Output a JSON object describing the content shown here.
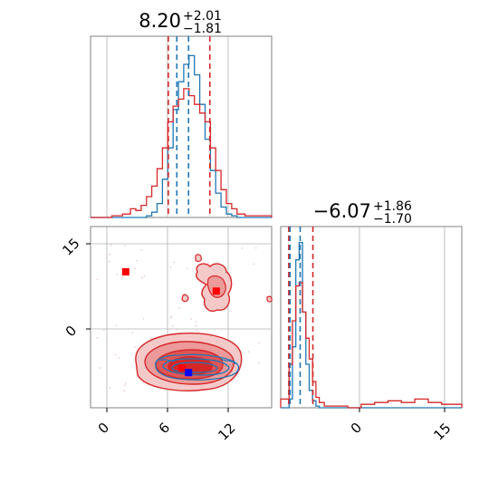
{
  "chart_data": {
    "type": "corner",
    "colors": {
      "blue": "#1f77b4",
      "red": "#d62728",
      "grid": "#b0b0b0",
      "frame": "#808080"
    },
    "param1": {
      "median": "8.20",
      "plus": "+2.01",
      "minus": "−1.81",
      "xlim": [
        -1,
        16
      ],
      "quantile_lines_blue": [
        7.1,
        8.2
      ],
      "quantile_lines_red": [
        6.3,
        10.2
      ],
      "hist_x": [
        0.5,
        1.5,
        2.5,
        3.0,
        3.5,
        4.0,
        4.5,
        5.0,
        5.5,
        6.0,
        6.5,
        7.0,
        7.5,
        8.0,
        8.5,
        9.0,
        9.5,
        10.0,
        10.5,
        11.0,
        11.5,
        12.0,
        12.5,
        13.0,
        14.0,
        15.0
      ],
      "hist_blue": [
        0,
        0,
        0,
        0,
        0,
        0,
        0.01,
        0.03,
        0.08,
        0.22,
        0.4,
        0.62,
        0.78,
        0.88,
        0.93,
        0.82,
        0.65,
        0.45,
        0.27,
        0.14,
        0.06,
        0.02,
        0.01,
        0,
        0,
        0
      ],
      "hist_red": [
        0,
        0.01,
        0.02,
        0.05,
        0.04,
        0.07,
        0.12,
        0.18,
        0.28,
        0.4,
        0.55,
        0.64,
        0.68,
        0.74,
        0.7,
        0.65,
        0.6,
        0.55,
        0.4,
        0.27,
        0.16,
        0.08,
        0.05,
        0.02,
        0.01,
        0.01
      ]
    },
    "param2": {
      "median": "−6.07",
      "plus": "+1.86",
      "minus": "−1.70",
      "xlim": [
        -9,
        18
      ],
      "quantile_lines_blue": [
        -7.6,
        -6.1
      ],
      "quantile_lines_red": [
        -7.8,
        -4.2
      ],
      "hist_x": [
        -8.0,
        -7.5,
        -7.0,
        -6.5,
        -6.0,
        -5.5,
        -5.0,
        -4.5,
        -4.0,
        -3.5,
        -3.0,
        -2.0,
        0.0,
        2.0,
        4.0,
        6.0,
        8.0,
        10.0,
        12.0,
        14.0,
        16.0
      ],
      "hist_blue": [
        0,
        0.05,
        0.35,
        0.85,
        0.95,
        0.55,
        0.25,
        0.1,
        0.04,
        0.01,
        0,
        0,
        0,
        0,
        0,
        0,
        0,
        0,
        0,
        0,
        0
      ],
      "hist_red": [
        0.05,
        0.25,
        0.5,
        0.7,
        0.72,
        0.55,
        0.4,
        0.28,
        0.15,
        0.06,
        0.03,
        0.01,
        0.01,
        0,
        0.02,
        0.03,
        0.04,
        0.03,
        0.05,
        0.03,
        0.02
      ]
    },
    "joint": {
      "xlim": [
        -1,
        16
      ],
      "ylim": [
        -13,
        19
      ],
      "markers_red": [
        [
          2.3,
          11
        ],
        [
          10.8,
          7.6
        ],
        [
          7.6,
          -6.0
        ]
      ],
      "markers_blue": [
        [
          8.2,
          -6.8
        ]
      ]
    },
    "tick_labels": {
      "x_joint": [
        "0",
        "6",
        "12"
      ],
      "y_joint": [
        "15",
        "0"
      ],
      "x_param2": [
        "0",
        "15"
      ]
    }
  }
}
